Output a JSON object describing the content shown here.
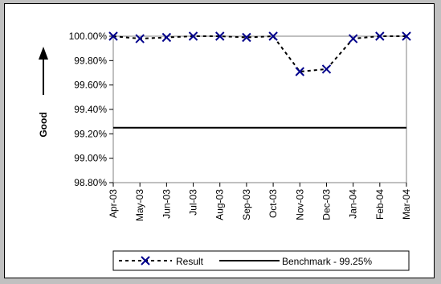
{
  "chart_data": {
    "type": "line",
    "title": "",
    "xlabel": "",
    "ylabel": "Good",
    "ylim": [
      98.8,
      100.0
    ],
    "yticks": [
      98.8,
      99.0,
      99.2,
      99.4,
      99.6,
      99.8,
      100.0
    ],
    "ytick_labels": [
      "98.80%",
      "99.00%",
      "99.20%",
      "99.40%",
      "99.60%",
      "99.80%",
      "100.00%"
    ],
    "categories": [
      "Apr-03",
      "May-03",
      "Jun-03",
      "Jul-03",
      "Aug-03",
      "Sep-03",
      "Oct-03",
      "Nov-03",
      "Dec-03",
      "Jan-04",
      "Feb-04",
      "Mar-04"
    ],
    "series": [
      {
        "name": "Result",
        "style": "dashed-with-x-markers",
        "color": "#00008b",
        "values": [
          100.0,
          99.98,
          99.99,
          100.0,
          100.0,
          99.99,
          100.0,
          99.71,
          99.73,
          99.98,
          100.0,
          100.0
        ]
      },
      {
        "name": "Benchmark - 99.25%",
        "style": "solid",
        "color": "#000000",
        "values": [
          99.25,
          99.25,
          99.25,
          99.25,
          99.25,
          99.25,
          99.25,
          99.25,
          99.25,
          99.25,
          99.25,
          99.25
        ]
      }
    ],
    "grid": false,
    "legend_position": "bottom",
    "annotation_arrow": "up"
  }
}
